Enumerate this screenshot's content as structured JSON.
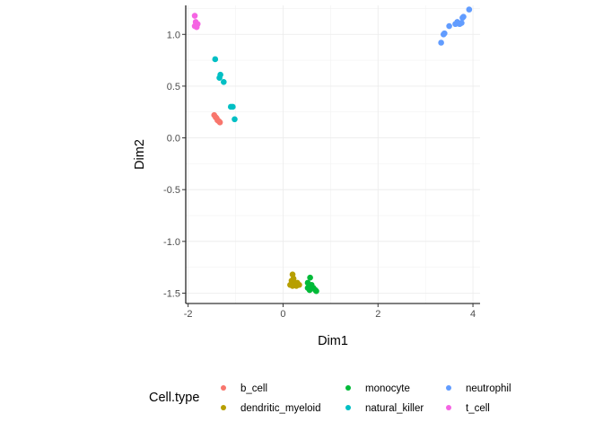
{
  "chart_data": {
    "type": "scatter",
    "xlabel": "Dim1",
    "ylabel": "Dim2",
    "xlim": [
      -2.05,
      4.15
    ],
    "ylim": [
      -1.6,
      1.28
    ],
    "x_ticks": [
      -2,
      0,
      2,
      4
    ],
    "x_tick_labels": [
      "-2",
      "0",
      "2",
      "4"
    ],
    "y_ticks": [
      -1.5,
      -1.0,
      -0.5,
      0.0,
      0.5,
      1.0
    ],
    "y_tick_labels": [
      "-1.5",
      "-1.0",
      "-0.5",
      "0.0",
      "0.5",
      "1.0"
    ],
    "grid": true,
    "legend": {
      "title": "Cell.type",
      "position": "bottom",
      "columns": 3,
      "entries": [
        "b_cell",
        "dendritic_myeloid",
        "monocyte",
        "natural_killer",
        "neutrophil",
        "t_cell"
      ]
    },
    "series": [
      {
        "name": "b_cell",
        "color": "#F8766D",
        "points": [
          [
            -1.45,
            0.22
          ],
          [
            -1.42,
            0.2
          ],
          [
            -1.4,
            0.19
          ],
          [
            -1.38,
            0.17
          ],
          [
            -1.35,
            0.16
          ],
          [
            -1.33,
            0.15
          ]
        ]
      },
      {
        "name": "dendritic_myeloid",
        "color": "#B79F00",
        "points": [
          [
            0.2,
            -1.32
          ],
          [
            0.22,
            -1.36
          ],
          [
            0.18,
            -1.38
          ],
          [
            0.24,
            -1.4
          ],
          [
            0.3,
            -1.4
          ],
          [
            0.15,
            -1.42
          ],
          [
            0.2,
            -1.43
          ],
          [
            0.28,
            -1.43
          ],
          [
            0.34,
            -1.42
          ]
        ]
      },
      {
        "name": "monocyte",
        "color": "#00BA38",
        "points": [
          [
            0.57,
            -1.35
          ],
          [
            0.52,
            -1.4
          ],
          [
            0.6,
            -1.42
          ],
          [
            0.52,
            -1.45
          ],
          [
            0.58,
            -1.45
          ],
          [
            0.64,
            -1.45
          ],
          [
            0.56,
            -1.47
          ],
          [
            0.68,
            -1.47
          ],
          [
            0.7,
            -1.48
          ]
        ]
      },
      {
        "name": "natural_killer",
        "color": "#00BFC4",
        "points": [
          [
            -1.43,
            0.76
          ],
          [
            -1.32,
            0.61
          ],
          [
            -1.34,
            0.58
          ],
          [
            -1.25,
            0.54
          ],
          [
            -1.1,
            0.3
          ],
          [
            -1.06,
            0.3
          ],
          [
            -1.02,
            0.18
          ]
        ]
      },
      {
        "name": "neutrophil",
        "color": "#619CFF",
        "points": [
          [
            3.33,
            0.92
          ],
          [
            3.38,
            1.0
          ],
          [
            3.4,
            1.01
          ],
          [
            3.5,
            1.08
          ],
          [
            3.63,
            1.1
          ],
          [
            3.67,
            1.12
          ],
          [
            3.72,
            1.1
          ],
          [
            3.76,
            1.11
          ],
          [
            3.78,
            1.16
          ],
          [
            3.8,
            1.17
          ],
          [
            3.92,
            1.24
          ]
        ]
      },
      {
        "name": "t_cell",
        "color": "#F564E3",
        "points": [
          [
            -1.86,
            1.18
          ],
          [
            -1.84,
            1.12
          ],
          [
            -1.82,
            1.1
          ],
          [
            -1.8,
            1.1
          ],
          [
            -1.86,
            1.08
          ],
          [
            -1.82,
            1.07
          ]
        ]
      }
    ]
  }
}
